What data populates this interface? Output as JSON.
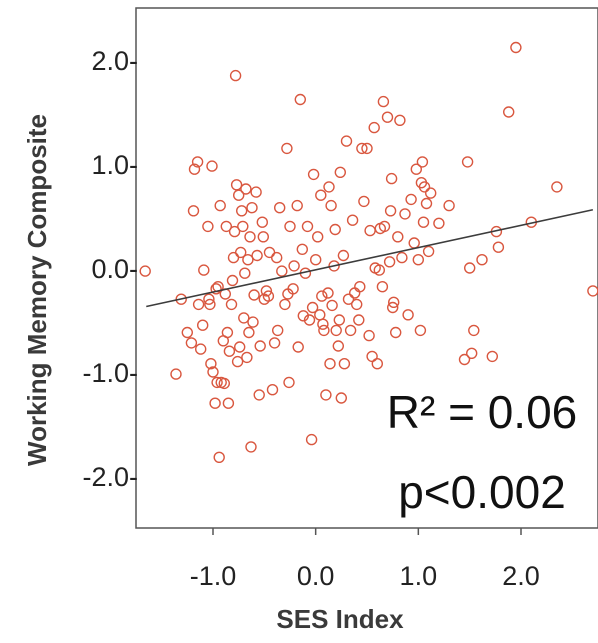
{
  "colors": {
    "point": "#d9573f",
    "fit_line": "#3c3c3c",
    "frame": "#555555"
  },
  "chart_data": {
    "type": "scatter",
    "title": "",
    "xlabel": "SES Index",
    "ylabel": "Working Memory Composite",
    "xlim": [
      -1.75,
      2.75
    ],
    "ylim": [
      -2.5,
      2.5
    ],
    "xticks": [
      {
        "value": -1.0,
        "label": "-1.0"
      },
      {
        "value": 0.0,
        "label": "0.0"
      },
      {
        "value": 1.0,
        "label": "1.0"
      },
      {
        "value": 2.0,
        "label": "2.0"
      }
    ],
    "yticks": [
      {
        "value": 2.0,
        "label": "2.0-"
      },
      {
        "value": 1.0,
        "label": "1.0-"
      },
      {
        "value": 0.0,
        "label": "0.0-"
      },
      {
        "value": -1.0,
        "label": "-1.0-"
      },
      {
        "value": -2.0,
        "label": "-2.0-"
      }
    ],
    "grid": false,
    "fit_line": {
      "x": [
        -1.65,
        2.7
      ],
      "y": [
        -0.37,
        0.56
      ]
    },
    "annotations": {
      "r2_label": "R² = 0.06",
      "p_label": "p<0.002"
    },
    "points": [
      [
        -1.66,
        -0.03
      ],
      [
        -1.36,
        -1.02
      ],
      [
        -1.31,
        -0.3
      ],
      [
        -1.25,
        -0.62
      ],
      [
        -1.21,
        -0.72
      ],
      [
        -1.19,
        0.55
      ],
      [
        -1.18,
        0.95
      ],
      [
        -1.15,
        1.02
      ],
      [
        -1.14,
        -0.35
      ],
      [
        -1.12,
        -0.78
      ],
      [
        -1.1,
        -0.55
      ],
      [
        -1.09,
        -0.02
      ],
      [
        -1.05,
        0.4
      ],
      [
        -1.04,
        -0.3
      ],
      [
        -1.03,
        -0.35
      ],
      [
        -1.02,
        -0.92
      ],
      [
        -1.01,
        0.98
      ],
      [
        -1.0,
        -1.0
      ],
      [
        -0.98,
        -1.3
      ],
      [
        -0.97,
        -0.2
      ],
      [
        -0.96,
        -1.1
      ],
      [
        -0.95,
        -0.18
      ],
      [
        -0.94,
        -1.82
      ],
      [
        -0.93,
        0.6
      ],
      [
        -0.92,
        -1.1
      ],
      [
        -0.9,
        -0.7
      ],
      [
        -0.89,
        -1.11
      ],
      [
        -0.88,
        -0.25
      ],
      [
        -0.87,
        0.4
      ],
      [
        -0.86,
        -0.62
      ],
      [
        -0.85,
        -1.3
      ],
      [
        -0.84,
        -0.8
      ],
      [
        -0.82,
        -0.35
      ],
      [
        -0.81,
        -0.12
      ],
      [
        -0.8,
        0.1
      ],
      [
        -0.79,
        0.35
      ],
      [
        -0.78,
        1.85
      ],
      [
        -0.77,
        0.8
      ],
      [
        -0.76,
        -0.9
      ],
      [
        -0.75,
        0.7
      ],
      [
        -0.74,
        -0.76
      ],
      [
        -0.73,
        0.15
      ],
      [
        -0.72,
        0.55
      ],
      [
        -0.71,
        0.4
      ],
      [
        -0.7,
        -0.48
      ],
      [
        -0.69,
        -0.05
      ],
      [
        -0.68,
        0.76
      ],
      [
        -0.67,
        -0.86
      ],
      [
        -0.66,
        0.08
      ],
      [
        -0.65,
        -0.62
      ],
      [
        -0.64,
        0.3
      ],
      [
        -0.63,
        -1.72
      ],
      [
        -0.62,
        0.58
      ],
      [
        -0.61,
        -0.52
      ],
      [
        -0.6,
        -0.26
      ],
      [
        -0.58,
        0.73
      ],
      [
        -0.57,
        0.12
      ],
      [
        -0.55,
        -1.22
      ],
      [
        -0.54,
        -0.75
      ],
      [
        -0.52,
        0.44
      ],
      [
        -0.51,
        0.3
      ],
      [
        -0.5,
        -0.3
      ],
      [
        -0.48,
        -0.22
      ],
      [
        -0.46,
        -0.27
      ],
      [
        -0.45,
        0.15
      ],
      [
        -0.42,
        -1.17
      ],
      [
        -0.4,
        -0.72
      ],
      [
        -0.38,
        0.1
      ],
      [
        -0.37,
        -0.6
      ],
      [
        -0.35,
        0.58
      ],
      [
        -0.33,
        -0.03
      ],
      [
        -0.3,
        -0.35
      ],
      [
        -0.28,
        1.15
      ],
      [
        -0.27,
        -0.25
      ],
      [
        -0.26,
        -1.1
      ],
      [
        -0.25,
        0.4
      ],
      [
        -0.22,
        -0.2
      ],
      [
        -0.21,
        0.02
      ],
      [
        -0.18,
        0.6
      ],
      [
        -0.17,
        -0.76
      ],
      [
        -0.15,
        1.62
      ],
      [
        -0.13,
        0.18
      ],
      [
        -0.12,
        -0.46
      ],
      [
        -0.1,
        -0.05
      ],
      [
        -0.08,
        0.4
      ],
      [
        -0.06,
        -0.5
      ],
      [
        -0.04,
        -1.65
      ],
      [
        -0.03,
        -0.38
      ],
      [
        -0.02,
        0.9
      ],
      [
        0.0,
        0.08
      ],
      [
        0.02,
        0.3
      ],
      [
        0.04,
        -0.45
      ],
      [
        0.05,
        0.7
      ],
      [
        0.06,
        -0.27
      ],
      [
        0.07,
        -0.54
      ],
      [
        0.08,
        -0.6
      ],
      [
        0.1,
        -1.22
      ],
      [
        0.12,
        -0.24
      ],
      [
        0.13,
        0.78
      ],
      [
        0.14,
        -0.92
      ],
      [
        0.15,
        0.6
      ],
      [
        0.16,
        -0.36
      ],
      [
        0.18,
        0.02
      ],
      [
        0.19,
        0.37
      ],
      [
        0.2,
        -0.6
      ],
      [
        0.22,
        -0.75
      ],
      [
        0.23,
        -0.5
      ],
      [
        0.24,
        0.92
      ],
      [
        0.25,
        -1.25
      ],
      [
        0.27,
        0.12
      ],
      [
        0.28,
        -0.92
      ],
      [
        0.3,
        1.22
      ],
      [
        0.32,
        -0.3
      ],
      [
        0.34,
        -0.6
      ],
      [
        0.36,
        0.46
      ],
      [
        0.38,
        -0.24
      ],
      [
        0.4,
        -0.35
      ],
      [
        0.42,
        -0.5
      ],
      [
        0.43,
        -0.18
      ],
      [
        0.45,
        1.15
      ],
      [
        0.47,
        0.64
      ],
      [
        0.5,
        1.15
      ],
      [
        0.52,
        -0.65
      ],
      [
        0.53,
        0.36
      ],
      [
        0.55,
        -0.85
      ],
      [
        0.57,
        1.35
      ],
      [
        0.58,
        0.0
      ],
      [
        0.6,
        -0.92
      ],
      [
        0.62,
        -0.02
      ],
      [
        0.63,
        0.38
      ],
      [
        0.65,
        -0.18
      ],
      [
        0.66,
        1.6
      ],
      [
        0.67,
        0.4
      ],
      [
        0.7,
        1.45
      ],
      [
        0.72,
        0.06
      ],
      [
        0.73,
        0.55
      ],
      [
        0.74,
        0.86
      ],
      [
        0.75,
        -0.38
      ],
      [
        0.76,
        -0.33
      ],
      [
        0.78,
        -0.62
      ],
      [
        0.8,
        0.3
      ],
      [
        0.82,
        1.42
      ],
      [
        0.84,
        0.1
      ],
      [
        0.87,
        0.52
      ],
      [
        0.9,
        -0.45
      ],
      [
        0.93,
        0.66
      ],
      [
        0.96,
        0.24
      ],
      [
        0.98,
        0.95
      ],
      [
        1.0,
        0.08
      ],
      [
        1.02,
        -0.6
      ],
      [
        1.03,
        0.82
      ],
      [
        1.04,
        1.02
      ],
      [
        1.05,
        0.44
      ],
      [
        1.06,
        0.78
      ],
      [
        1.08,
        0.62
      ],
      [
        1.1,
        0.16
      ],
      [
        1.12,
        0.72
      ],
      [
        1.2,
        0.43
      ],
      [
        1.3,
        0.6
      ],
      [
        1.45,
        -0.88
      ],
      [
        1.48,
        1.02
      ],
      [
        1.5,
        0.0
      ],
      [
        1.52,
        -0.82
      ],
      [
        1.54,
        -0.6
      ],
      [
        1.62,
        0.08
      ],
      [
        1.72,
        -0.85
      ],
      [
        1.76,
        0.35
      ],
      [
        1.78,
        0.2
      ],
      [
        1.88,
        1.5
      ],
      [
        1.95,
        2.12
      ],
      [
        2.1,
        0.44
      ],
      [
        2.35,
        0.78
      ],
      [
        2.7,
        -0.22
      ]
    ]
  }
}
